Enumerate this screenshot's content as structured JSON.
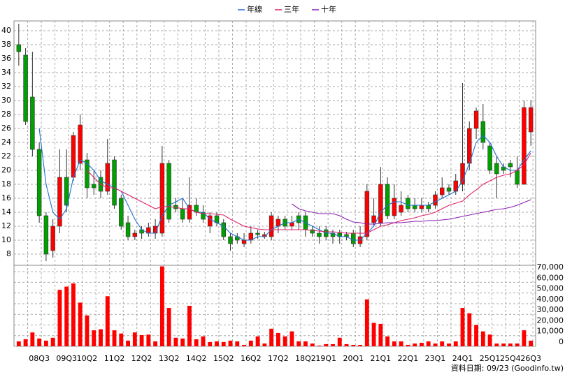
{
  "chart_data": {
    "type": "candlestick",
    "categories": [
      null,
      null,
      null,
      "08Q3",
      null,
      null,
      null,
      "09Q3",
      null,
      null,
      "10Q2",
      null,
      null,
      null,
      "11Q2",
      null,
      null,
      null,
      "12Q2",
      null,
      null,
      null,
      "13Q2",
      null,
      null,
      null,
      "14Q2",
      null,
      null,
      null,
      "15Q2",
      null,
      null,
      null,
      "16Q2",
      null,
      null,
      null,
      "17Q2",
      null,
      null,
      null,
      "18Q2",
      null,
      null,
      "19Q1",
      null,
      null,
      null,
      "20Q1",
      null,
      null,
      null,
      "21Q1",
      null,
      null,
      null,
      "22Q1",
      null,
      null,
      null,
      "23Q1",
      null,
      null,
      null,
      "24Q1",
      null,
      null,
      null,
      "25Q1",
      null,
      null,
      "25Q4",
      null,
      null,
      "26Q3"
    ],
    "open": [
      38,
      36.5,
      30.5,
      23,
      13.5,
      8.5,
      12,
      19,
      19,
      21,
      21.5,
      18,
      19,
      17,
      21.5,
      16,
      12.5,
      10.5,
      11.5,
      11,
      11,
      11,
      21,
      15,
      14.5,
      13,
      15,
      14,
      12,
      13.5,
      12.5,
      10.5,
      10.5,
      9.5,
      10,
      11,
      10.5,
      10.5,
      12,
      13,
      12,
      13.5,
      13.5,
      11.5,
      11,
      11.5,
      11,
      11,
      10.8,
      11,
      9.5,
      10.5,
      12.5,
      12.5,
      18,
      13.5,
      14,
      16,
      15,
      14.5,
      15,
      15,
      16.5,
      17.5,
      17,
      18,
      21,
      26,
      27,
      23.5,
      21,
      20.5,
      21,
      20,
      18,
      25.5
    ],
    "high": [
      41,
      37.5,
      37,
      24,
      14,
      13,
      23,
      23,
      25.5,
      28,
      22.5,
      20,
      20,
      24.5,
      22,
      16.5,
      13.5,
      11.5,
      12,
      12.5,
      13,
      23.5,
      21.5,
      16,
      16,
      19,
      16,
      15,
      14,
      14,
      13,
      11,
      11,
      11,
      12,
      11.5,
      11.2,
      14,
      13.5,
      13.5,
      13.5,
      14,
      14,
      12,
      12,
      12,
      11.5,
      11.5,
      11.2,
      11.5,
      12,
      18,
      16,
      20.5,
      19,
      18,
      17,
      16.5,
      16,
      16,
      15.5,
      17,
      19,
      18,
      19.5,
      32.5,
      27,
      29,
      29.5,
      24,
      22,
      21,
      21.5,
      22,
      30,
      30
    ],
    "low": [
      35,
      26.5,
      22,
      12.5,
      7,
      7.5,
      11,
      14,
      18.5,
      20,
      16,
      16.5,
      16,
      16.5,
      14.5,
      11.5,
      10,
      10,
      10.2,
      10.5,
      10.2,
      10.5,
      12.5,
      14,
      12.5,
      12.5,
      13.5,
      12.5,
      11,
      12,
      10,
      8.5,
      9.5,
      9,
      9.5,
      10.2,
      10.2,
      10,
      11,
      11.5,
      11.5,
      11.5,
      10.5,
      10.5,
      9.5,
      10,
      9.5,
      9.5,
      10,
      9,
      9,
      10,
      12,
      12,
      13,
      13,
      13.5,
      14,
      14,
      14,
      14,
      14.5,
      16,
      16.5,
      16.5,
      17,
      20,
      24.5,
      23,
      19.5,
      16,
      19.5,
      19,
      17.5,
      18,
      23.5
    ],
    "close": [
      37,
      27,
      23,
      13.5,
      8,
      12,
      19,
      15,
      25,
      26.5,
      17.5,
      17.5,
      17,
      21,
      15,
      12,
      10.5,
      11,
      11,
      11.8,
      12,
      21,
      13,
      14.5,
      13,
      15,
      14,
      13,
      13.5,
      12.5,
      10.5,
      9.5,
      10,
      10,
      11,
      10.8,
      10.8,
      13.5,
      13,
      12,
      12.5,
      12.5,
      11.5,
      11,
      10.5,
      10.5,
      10.5,
      10.5,
      10.5,
      9.5,
      10.5,
      17,
      13.5,
      18,
      13.5,
      16,
      15,
      14.5,
      14.5,
      15,
      14.5,
      16.5,
      17.5,
      17,
      18.5,
      21,
      26,
      28.5,
      24,
      20,
      19.5,
      20,
      20.5,
      18,
      29,
      29
    ],
    "volume": [
      4600,
      6600,
      13000,
      7300,
      5300,
      8000,
      53000,
      56000,
      59000,
      41000,
      29000,
      15000,
      16000,
      47000,
      15000,
      12000,
      5300,
      13000,
      10500,
      11000,
      4600,
      75000,
      36000,
      8000,
      7300,
      38000,
      6600,
      9300,
      4000,
      4600,
      4000,
      5300,
      4600,
      1300,
      5300,
      9300,
      2600,
      16500,
      12500,
      9300,
      14000,
      4600,
      4600,
      2600,
      660,
      2000,
      2000,
      8000,
      2000,
      1300,
      1300,
      44000,
      22000,
      21000,
      9300,
      4600,
      4600,
      1300,
      2600,
      3300,
      4600,
      2600,
      4600,
      2600,
      4600,
      36000,
      31000,
      20000,
      14000,
      11000,
      2600,
      2600,
      2600,
      2600,
      15000,
      5300
    ],
    "up_color": "#ff0000",
    "down_color": "#00a000",
    "volume_color": "#ff0000",
    "series": [
      {
        "name": "年線",
        "color": "#1e6fd0",
        "values": [
          null,
          null,
          null,
          26,
          18,
          14,
          13,
          14.5,
          19,
          21.5,
          21,
          20,
          18.5,
          18,
          17.5,
          17,
          15,
          13,
          11.5,
          11,
          11,
          13.5,
          15,
          15.5,
          16,
          14.5,
          14,
          14,
          13,
          12.5,
          12,
          11,
          10.5,
          10,
          10,
          10.5,
          10.5,
          11.5,
          12,
          12.5,
          12.5,
          13,
          12.5,
          12,
          11.5,
          11,
          11,
          10.5,
          10.5,
          10,
          10,
          11,
          12,
          14,
          15,
          15.5,
          15.5,
          15,
          15,
          15,
          15,
          15.5,
          16,
          16.5,
          17,
          18.5,
          21,
          24,
          25,
          24,
          22,
          20.5,
          20,
          20,
          21.5,
          22.8
        ]
      },
      {
        "name": "三年",
        "color": "#e0206a",
        "values": [
          null,
          null,
          null,
          null,
          null,
          null,
          null,
          null,
          null,
          null,
          20,
          19,
          18,
          17.5,
          17.5,
          17,
          16.5,
          16,
          15.5,
          15,
          14.5,
          14.8,
          14.8,
          14.7,
          14.5,
          14.5,
          14,
          13.8,
          13.8,
          13.7,
          13.6,
          13,
          12.5,
          12,
          11.8,
          11.6,
          11.5,
          11.5,
          11.5,
          11.5,
          11.5,
          11.5,
          11.5,
          11.4,
          11.3,
          11.2,
          11.2,
          11.1,
          11,
          11,
          11,
          11,
          11.5,
          12,
          12.2,
          12.5,
          12.8,
          13,
          13.2,
          13.5,
          13.7,
          14,
          14.5,
          15,
          15.3,
          15.6,
          16.5,
          17.2,
          18,
          18.5,
          19,
          19.3,
          19.5,
          20,
          20.8,
          22.5
        ]
      },
      {
        "name": "十年",
        "color": "#8a1fb0",
        "values": [
          null,
          null,
          null,
          null,
          null,
          null,
          null,
          null,
          null,
          null,
          null,
          null,
          null,
          null,
          null,
          null,
          null,
          null,
          null,
          null,
          null,
          null,
          null,
          null,
          null,
          null,
          null,
          null,
          null,
          null,
          null,
          null,
          null,
          null,
          null,
          null,
          null,
          null,
          null,
          null,
          15.2,
          14.5,
          14.2,
          14,
          13.8,
          13.8,
          13.8,
          13.5,
          13,
          12.6,
          12.5,
          12.3,
          12.3,
          12.4,
          12.5,
          12.5,
          12.5,
          12.6,
          12.7,
          12.7,
          12.8,
          12.8,
          12.9,
          13,
          13.2,
          13.4,
          13.6,
          13.8,
          14,
          14.2,
          14.4,
          14.5,
          14.7,
          15,
          15.4,
          15.8
        ]
      }
    ],
    "ylim": [
      6.4,
      41.4
    ],
    "yticks": [
      8,
      10,
      12,
      14,
      16,
      18,
      20,
      22,
      24,
      26,
      28,
      30,
      32,
      34,
      36,
      38,
      40
    ],
    "y2lim": [
      0,
      76000
    ],
    "y2ticks": [
      0,
      {
        "value": 10000,
        "label": "10,000"
      },
      {
        "value": 20000,
        "label": "20,000"
      },
      {
        "value": 30000,
        "label": "30,000"
      },
      {
        "value": 40000,
        "label": "40,000"
      },
      {
        "value": 50000,
        "label": "50,000"
      },
      {
        "value": 60000,
        "label": "60,000"
      },
      {
        "value": 70000,
        "label": "70,000"
      }
    ],
    "grid": true,
    "note": "資料日期: 09/23  (Goodinfo.tw)"
  }
}
